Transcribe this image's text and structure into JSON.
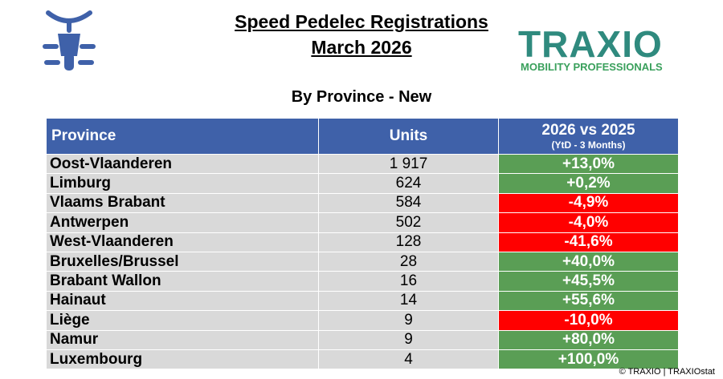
{
  "header": {
    "title": "Speed Pedelec Registrations",
    "subtitle": "March 2026"
  },
  "logo": {
    "name": "TRAXIO",
    "tagline": "MOBILITY PROFESSIONALS"
  },
  "section": "By Province - New",
  "table": {
    "columns": [
      "Province",
      "Units",
      "2026 vs 2025",
      "(YtD - 3 Months)"
    ],
    "rows": [
      {
        "province": "Oost-Vlaanderen",
        "units": "1 917",
        "change": "+13,0%",
        "color": "#5a9e55"
      },
      {
        "province": "Limburg",
        "units": "624",
        "change": "+0,2%",
        "color": "#5a9e55"
      },
      {
        "province": "Vlaams Brabant",
        "units": "584",
        "change": "-4,9%",
        "color": "#ff0000"
      },
      {
        "province": "Antwerpen",
        "units": "502",
        "change": "-4,0%",
        "color": "#ff0000"
      },
      {
        "province": "West-Vlaanderen",
        "units": "128",
        "change": "-41,6%",
        "color": "#ff0000"
      },
      {
        "province": "Bruxelles/Brussel",
        "units": "28",
        "change": "+40,0%",
        "color": "#5a9e55"
      },
      {
        "province": "Brabant Wallon",
        "units": "16",
        "change": "+45,5%",
        "color": "#5a9e55"
      },
      {
        "province": "Hainaut",
        "units": "14",
        "change": "+55,6%",
        "color": "#5a9e55"
      },
      {
        "province": "Liège",
        "units": "9",
        "change": "-10,0%",
        "color": "#ff0000"
      },
      {
        "province": "Namur",
        "units": "9",
        "change": "+80,0%",
        "color": "#5a9e55"
      },
      {
        "province": "Luxembourg",
        "units": "4",
        "change": "+100,0%",
        "color": "#5a9e55"
      }
    ]
  },
  "footer": "© TRAXIO | TRAXIOstat"
}
